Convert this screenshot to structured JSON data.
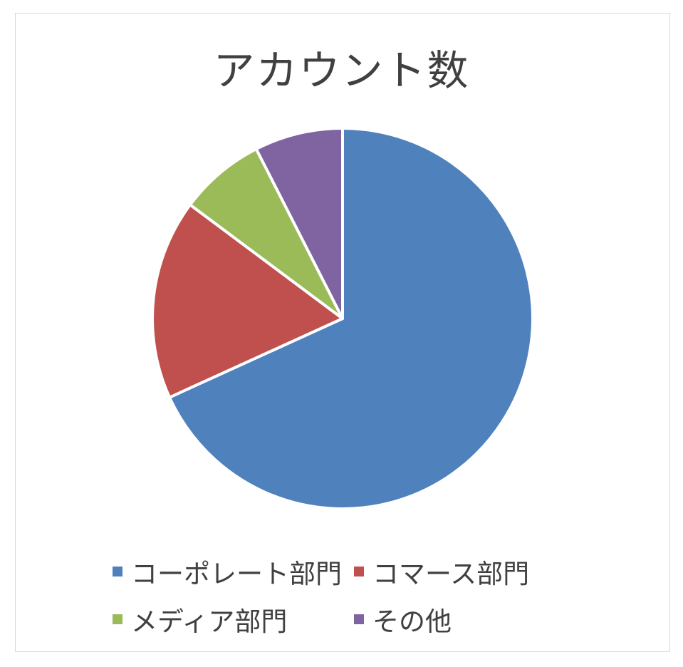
{
  "chart_data": {
    "type": "pie",
    "title": "アカウント数",
    "start_angle_deg": 0,
    "direction": "clockwise",
    "slices": [
      {
        "label": "コーポレート部門",
        "value": 68.2,
        "color": "#4f81bd"
      },
      {
        "label": "コマース部門",
        "value": 17.0,
        "color": "#c0504d"
      },
      {
        "label": "メディア部門",
        "value": 7.3,
        "color": "#9bbb59"
      },
      {
        "label": "その他",
        "value": 7.5,
        "color": "#8064a2"
      }
    ],
    "legend_position": "bottom"
  }
}
